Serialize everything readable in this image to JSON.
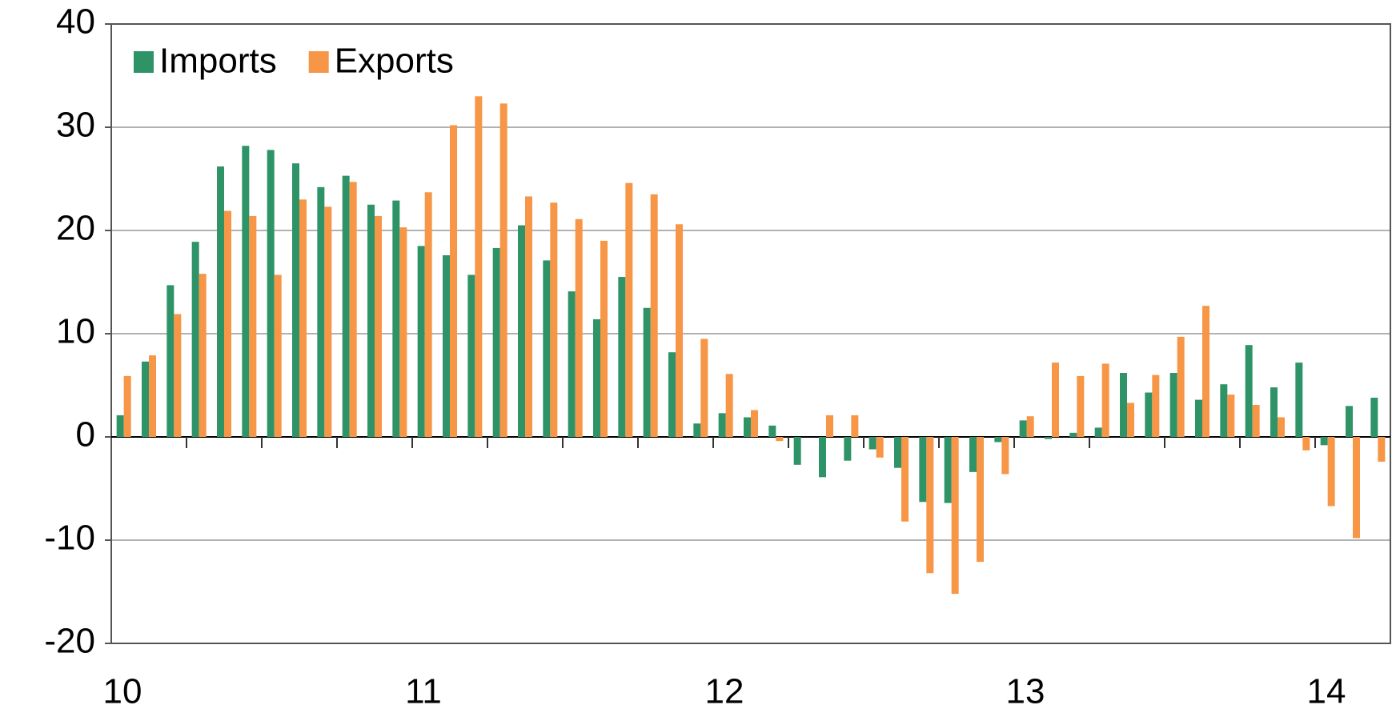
{
  "chart_data": {
    "type": "bar",
    "categories": [
      "10",
      null,
      null,
      null,
      null,
      null,
      null,
      null,
      null,
      null,
      null,
      null,
      "11",
      null,
      null,
      null,
      null,
      null,
      null,
      null,
      null,
      null,
      null,
      null,
      "12",
      null,
      null,
      null,
      null,
      null,
      null,
      null,
      null,
      null,
      null,
      null,
      "13",
      null,
      null,
      null,
      null,
      null,
      null,
      null,
      null,
      null,
      null,
      null,
      "14",
      null,
      null
    ],
    "series": [
      {
        "name": "Imports",
        "color": "#2e9468",
        "values": [
          2.1,
          7.3,
          14.7,
          18.9,
          26.2,
          28.2,
          27.8,
          26.5,
          24.2,
          25.3,
          22.5,
          22.9,
          18.5,
          17.6,
          15.7,
          18.3,
          20.5,
          17.1,
          14.1,
          11.4,
          15.5,
          12.5,
          8.2,
          1.3,
          2.3,
          1.9,
          1.1,
          -2.7,
          -3.9,
          -2.3,
          -1.2,
          -3.0,
          -6.3,
          -6.4,
          -3.4,
          -0.5,
          1.6,
          -0.2,
          0.4,
          0.9,
          6.2,
          4.3,
          6.2,
          3.6,
          5.1,
          8.9,
          4.8,
          7.2,
          -0.8,
          3.0,
          3.8
        ]
      },
      {
        "name": "Exports",
        "color": "#f79646",
        "values": [
          5.9,
          7.9,
          11.9,
          15.8,
          21.9,
          21.4,
          15.7,
          23.0,
          22.3,
          24.7,
          21.4,
          20.3,
          23.7,
          30.2,
          33.0,
          32.3,
          23.3,
          22.7,
          21.1,
          19.0,
          24.6,
          23.5,
          20.6,
          9.5,
          6.1,
          2.6,
          -0.4,
          0.0,
          2.1,
          2.1,
          -2.0,
          -8.2,
          -13.2,
          -15.2,
          -12.1,
          -3.6,
          2.0,
          7.2,
          5.9,
          7.1,
          3.3,
          6.0,
          9.7,
          12.7,
          4.1,
          3.1,
          1.9,
          -1.3,
          -6.7,
          -9.8,
          -2.4
        ]
      }
    ],
    "ylim": [
      -20,
      40
    ],
    "yticks": [
      -20,
      -10,
      0,
      10,
      20,
      30,
      40
    ],
    "grid": true,
    "legend": "top-left"
  }
}
